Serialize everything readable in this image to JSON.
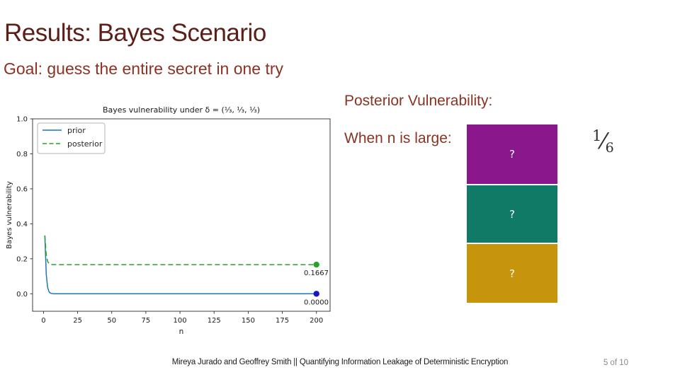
{
  "slide": {
    "title": "Results: Bayes Scenario",
    "goal": "Goal: guess the entire secret in one try",
    "posterior_label": "Posterior Vulnerability:",
    "when_label": "When n is large:",
    "fraction": {
      "numerator": "1",
      "slash": "⁄",
      "denominator": "6"
    },
    "boxes": [
      {
        "name": "purple-box",
        "color": "#8A188C",
        "label": "?"
      },
      {
        "name": "teal-box",
        "color": "#107A66",
        "label": "?"
      },
      {
        "name": "gold-box",
        "color": "#C6950C",
        "label": "?"
      }
    ],
    "colors": {
      "title": "#5C1F18",
      "heading": "#8A3322"
    },
    "footer": {
      "credit": "Mireya Jurado and Geoffrey Smith || Quantifying Information Leakage of Deterministic Encryption",
      "page": "5 of 10"
    }
  },
  "chart_data": {
    "type": "line",
    "title": "Bayes vulnerability under δ = (¹⁄₃, ¹⁄₃, ¹⁄₃)",
    "xlabel": "n",
    "ylabel": "Bayes vulnerability",
    "xlim": [
      -8,
      210
    ],
    "ylim": [
      -0.1,
      1.0
    ],
    "xticks": [
      0,
      25,
      50,
      75,
      100,
      125,
      150,
      175,
      200
    ],
    "yticks": [
      0.0,
      0.2,
      0.4,
      0.6,
      0.8,
      1.0
    ],
    "grid": false,
    "legend_position": "upper left",
    "x": [
      1,
      2,
      3,
      4,
      5,
      6,
      7,
      8,
      10,
      15,
      20,
      30,
      50,
      75,
      100,
      125,
      150,
      175,
      200
    ],
    "series": [
      {
        "name": "prior",
        "color": "#1f77b4",
        "marker_color": "#1616d1",
        "style": "solid",
        "end_label": "0.0000",
        "values": [
          0.3333,
          0.1111,
          0.037,
          0.0123,
          0.0041,
          0.0014,
          0.0005,
          0.0002,
          0.0,
          0.0,
          0.0,
          0.0,
          0.0,
          0.0,
          0.0,
          0.0,
          0.0,
          0.0,
          0.0
        ]
      },
      {
        "name": "posterior",
        "color": "#2ca02c",
        "marker_color": "#2ca02c",
        "style": "dashed",
        "end_label": "0.1667",
        "values": [
          0.3333,
          0.2222,
          0.1852,
          0.1728,
          0.1687,
          0.1674,
          0.167,
          0.1668,
          0.1667,
          0.1667,
          0.1667,
          0.1667,
          0.1667,
          0.1667,
          0.1667,
          0.1667,
          0.1667,
          0.1667,
          0.1667
        ]
      }
    ]
  }
}
